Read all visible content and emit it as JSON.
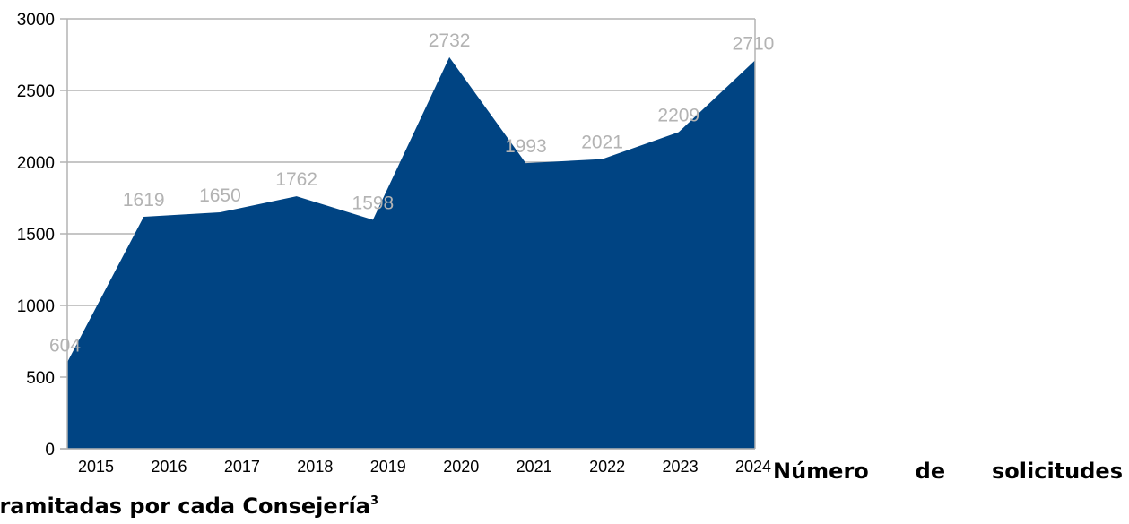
{
  "chart_data": {
    "type": "area",
    "categories": [
      "2015",
      "2016",
      "2017",
      "2018",
      "2019",
      "2020",
      "2021",
      "2022",
      "2023",
      "2024"
    ],
    "values": [
      604,
      1619,
      1650,
      1762,
      1598,
      2732,
      1993,
      2021,
      2209,
      2710
    ],
    "data_labels": [
      "604",
      "1619",
      "1650",
      "1762",
      "1598",
      "2732",
      "1993",
      "2021",
      "2209",
      "2710"
    ],
    "y_ticks": [
      "0",
      "500",
      "1000",
      "1500",
      "2000",
      "2500",
      "3000"
    ],
    "ylim": [
      0,
      3000
    ],
    "grid": true,
    "legend": "none",
    "fill_color": "#004483",
    "label_color": "#b3b3b3"
  },
  "caption": {
    "words_line1": [
      "Número",
      "de",
      "solicitudes"
    ],
    "line2": "tramitadas por cada Consejería",
    "footnote_mark": "3"
  }
}
